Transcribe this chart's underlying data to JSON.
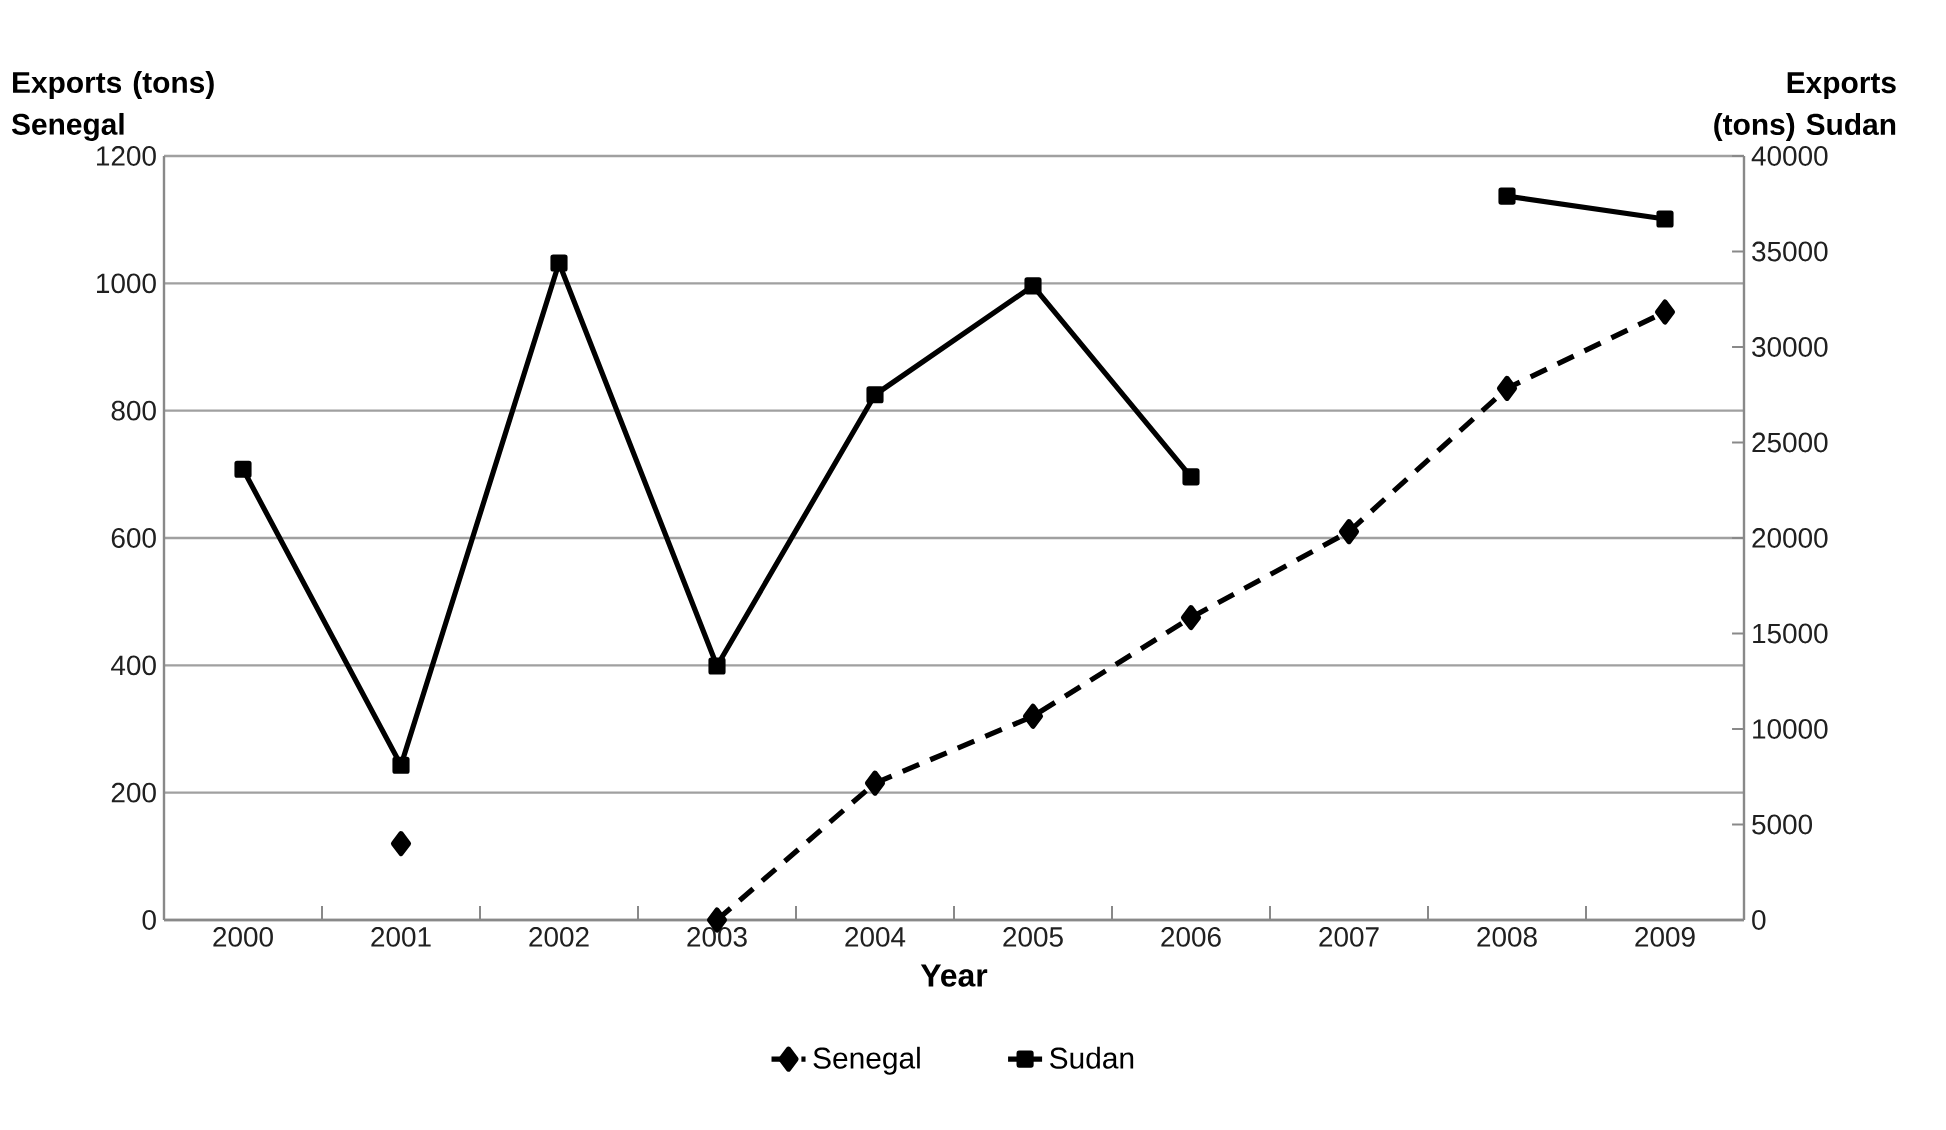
{
  "chart_data": {
    "type": "line",
    "xlabel": "Year",
    "ylabel": "Exports (tons) Senegal",
    "y2label": "Exports (tons) Sudan",
    "categories": [
      "2000",
      "2001",
      "2002",
      "2003",
      "2004",
      "2005",
      "2006",
      "2007",
      "2008",
      "2009"
    ],
    "series": [
      {
        "name": "Senegal",
        "color": "#000000",
        "marker": "diamond",
        "line_style": "dashed",
        "values": [
          null,
          120,
          null,
          0,
          215,
          320,
          475,
          610,
          835,
          955
        ]
      },
      {
        "name": "Sudan",
        "color": "#000000",
        "marker": "square",
        "line_style": "solid",
        "axis": "y2",
        "values": [
          23600,
          8100,
          34400,
          13300,
          27500,
          33200,
          23200,
          null,
          37900,
          36700
        ]
      }
    ],
    "ylim": [
      0,
      1200
    ],
    "yticks": [
      0,
      200,
      400,
      600,
      800,
      1000,
      1200
    ],
    "y2lim": [
      0,
      40000
    ],
    "y2ticks": [
      0,
      5000,
      10000,
      15000,
      20000,
      25000,
      30000,
      35000,
      40000
    ],
    "grid": "y",
    "legend": "bottom"
  }
}
